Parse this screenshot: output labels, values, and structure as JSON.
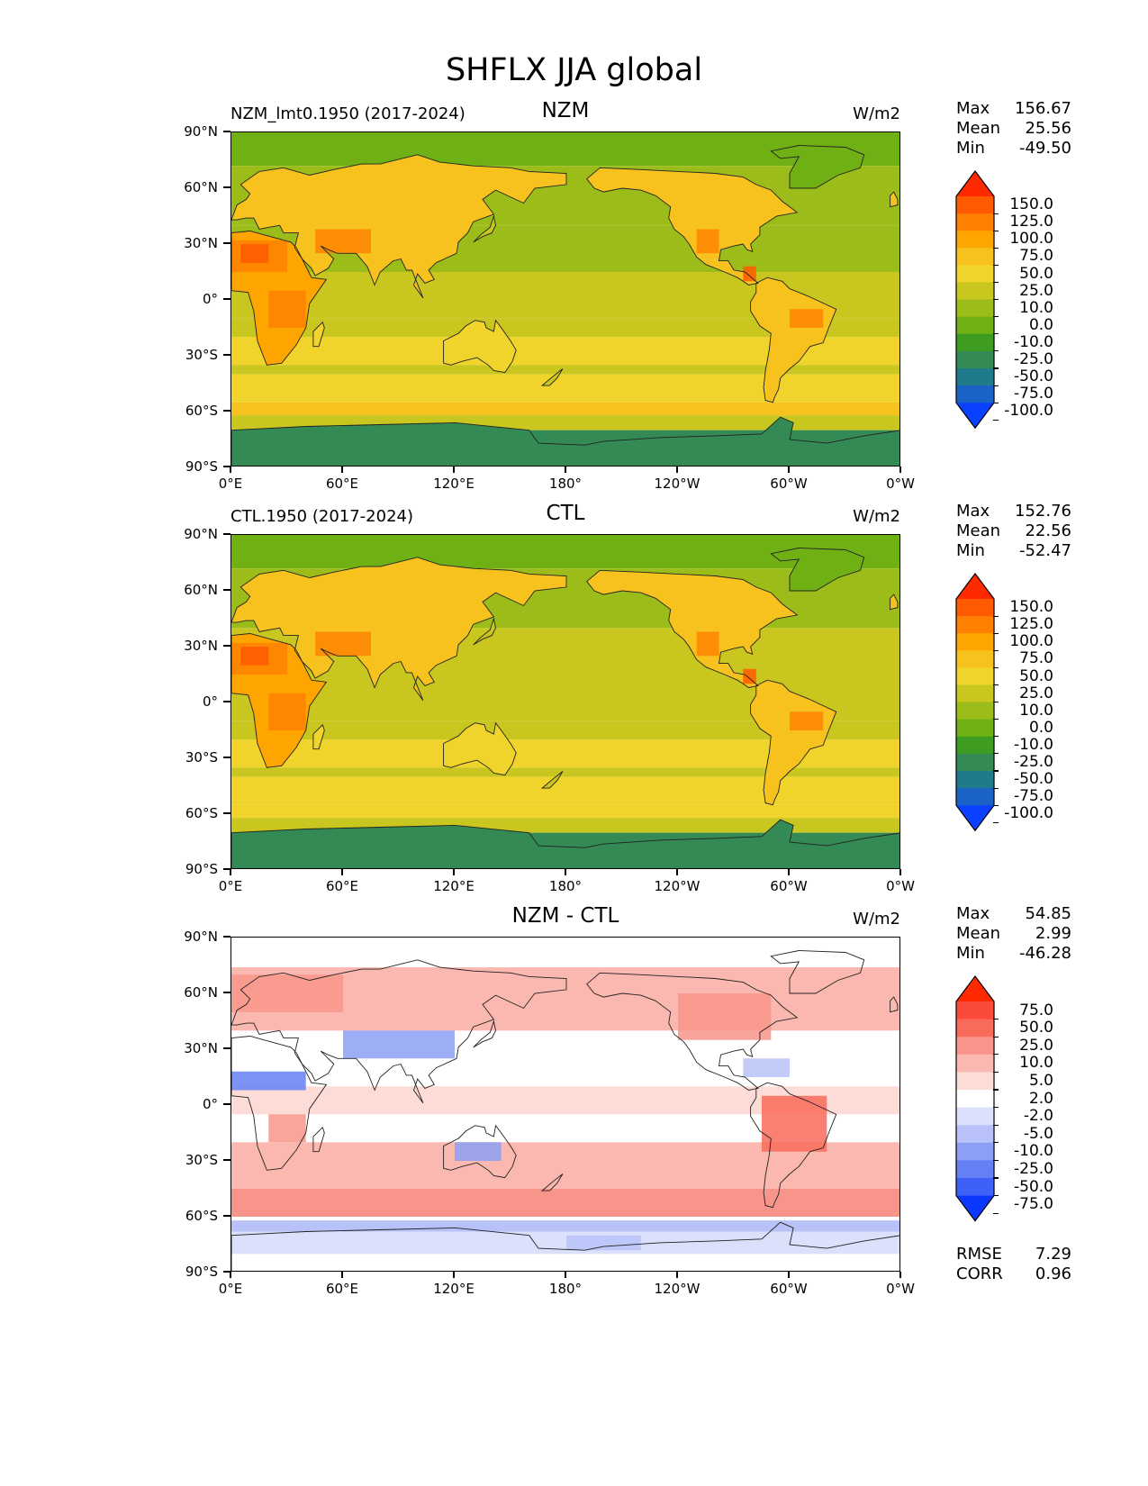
{
  "figure_title": "SHFLX JJA global",
  "chart_data": [
    {
      "type": "heatmap",
      "title": "NZM",
      "left_title": "NZM_lmt0.1950 (2017-2024)",
      "units": "W/m2",
      "stats": {
        "max_label": "Max",
        "max": "156.67",
        "mean_label": "Mean",
        "mean": "25.56",
        "min_label": "Min",
        "min": "-49.50"
      },
      "xticks": [
        "0°E",
        "60°E",
        "120°E",
        "180°",
        "120°W",
        "60°W",
        "0°W"
      ],
      "yticks": [
        "90°N",
        "60°N",
        "30°N",
        "0°",
        "30°S",
        "60°S",
        "90°S"
      ],
      "xlim": [
        0,
        360
      ],
      "ylim": [
        -90,
        90
      ],
      "colorbar_levels": [
        "150.0",
        "125.0",
        "100.0",
        "75.0",
        "50.0",
        "25.0",
        "10.0",
        "0.0",
        "-10.0",
        "-25.0",
        "-50.0",
        "-75.0",
        "-100.0"
      ],
      "colorbar_colors": [
        "#ff2a00",
        "#ff5a00",
        "#ff7f00",
        "#ffa500",
        "#f7c21e",
        "#f1d42b",
        "#c8c61f",
        "#9cbd19",
        "#6fb114",
        "#3e9c21",
        "#338a55",
        "#1f7a8c",
        "#1b62c7",
        "#0a40ff"
      ]
    },
    {
      "type": "heatmap",
      "title": "CTL",
      "left_title": "CTL.1950 (2017-2024)",
      "units": "W/m2",
      "stats": {
        "max_label": "Max",
        "max": "152.76",
        "mean_label": "Mean",
        "mean": "22.56",
        "min_label": "Min",
        "min": "-52.47"
      },
      "xticks": [
        "0°E",
        "60°E",
        "120°E",
        "180°",
        "120°W",
        "60°W",
        "0°W"
      ],
      "yticks": [
        "90°N",
        "60°N",
        "30°N",
        "0°",
        "30°S",
        "60°S",
        "90°S"
      ],
      "xlim": [
        0,
        360
      ],
      "ylim": [
        -90,
        90
      ],
      "colorbar_levels": [
        "150.0",
        "125.0",
        "100.0",
        "75.0",
        "50.0",
        "25.0",
        "10.0",
        "0.0",
        "-10.0",
        "-25.0",
        "-50.0",
        "-75.0",
        "-100.0"
      ],
      "colorbar_colors": [
        "#ff2a00",
        "#ff5a00",
        "#ff7f00",
        "#ffa500",
        "#f7c21e",
        "#f1d42b",
        "#c8c61f",
        "#9cbd19",
        "#6fb114",
        "#3e9c21",
        "#338a55",
        "#1f7a8c",
        "#1b62c7",
        "#0a40ff"
      ]
    },
    {
      "type": "heatmap",
      "title": "NZM - CTL",
      "left_title": "",
      "units": "W/m2",
      "stats": {
        "max_label": "Max",
        "max": "54.85",
        "mean_label": "Mean",
        "mean": "2.99",
        "min_label": "Min",
        "min": "-46.28",
        "rmse_label": "RMSE",
        "rmse": "7.29",
        "corr_label": "CORR",
        "corr": "0.96"
      },
      "xticks": [
        "0°E",
        "60°E",
        "120°E",
        "180°",
        "120°W",
        "60°W",
        "0°W"
      ],
      "yticks": [
        "90°N",
        "60°N",
        "30°N",
        "0°",
        "30°S",
        "60°S",
        "90°S"
      ],
      "xlim": [
        0,
        360
      ],
      "ylim": [
        -90,
        90
      ],
      "colorbar_levels": [
        "75.0",
        "50.0",
        "25.0",
        "10.0",
        "5.0",
        "2.0",
        "-2.0",
        "-5.0",
        "-10.0",
        "-25.0",
        "-50.0",
        "-75.0"
      ],
      "colorbar_colors": [
        "#ff2a00",
        "#fb4a3a",
        "#f86b5a",
        "#f8958a",
        "#fbb8b0",
        "#fddcd8",
        "#ffffff",
        "#dbe0fb",
        "#b8c2f8",
        "#8c9ff5",
        "#6580f5",
        "#3f60f7",
        "#0a38ff"
      ]
    }
  ]
}
